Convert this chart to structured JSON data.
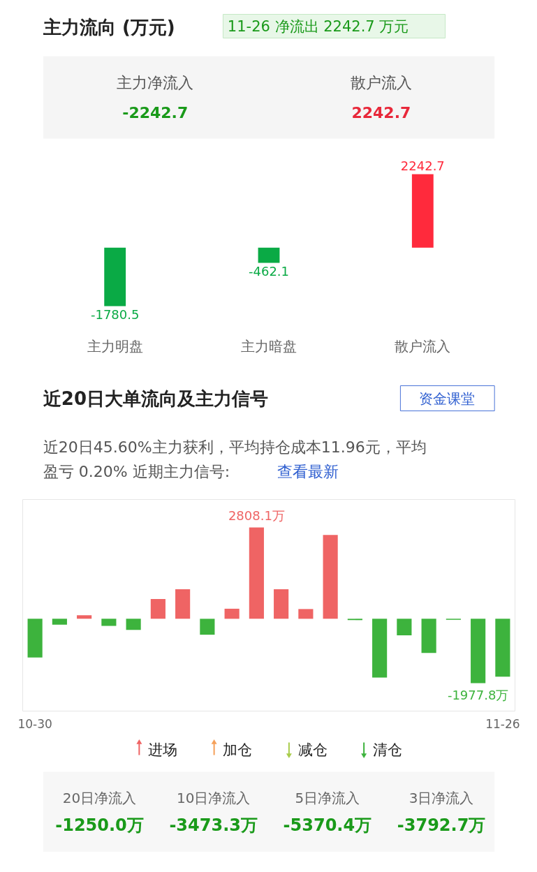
{
  "chart_data": [
    {
      "type": "other",
      "title": "主力流向 (万元)",
      "annotations": [
        "11-26 净流出 2242.7 万元",
        "主力净流入",
        "-2242.7",
        "散户流入",
        "2242.7"
      ]
    },
    {
      "type": "bar",
      "categories": [
        "主力明盘",
        "主力暗盘",
        "散户流入"
      ],
      "values": [
        -1780.5,
        -462.1,
        2242.7
      ],
      "colors": [
        "#0aaa45",
        "#0aaa45",
        "#ff2a3c"
      ],
      "data_labels": true,
      "tick_labels": "x"
    },
    {
      "type": "other",
      "title": "近20日大单流向及主力信号",
      "annotations": [
        "资金课堂",
        "近20日45.60%主力获利，平均持仓成本11.96元，平均",
        "盈亏 0.20% 近期主力信号:",
        "查看最新"
      ]
    },
    {
      "type": "bar",
      "categories": [
        "10-30",
        null,
        null,
        null,
        null,
        null,
        null,
        null,
        null,
        null,
        null,
        null,
        null,
        null,
        null,
        null,
        null,
        null,
        null,
        "11-26"
      ],
      "values": [
        -1190,
        -180,
        110,
        -220,
        -340,
        610,
        910,
        -490,
        310,
        2808.1,
        910,
        300,
        2580,
        -40,
        -1810,
        -510,
        -1050,
        -30,
        -1977.8,
        -1780
      ],
      "colors": [
        "#3db33d",
        "#3db33d",
        "#ef6464",
        "#3db33d",
        "#3db33d",
        "#ef6464",
        "#ef6464",
        "#3db33d",
        "#ef6464",
        "#ef6464",
        "#ef6464",
        "#ef6464",
        "#ef6464",
        "#3db33d",
        "#3db33d",
        "#3db33d",
        "#3db33d",
        "#3db33d",
        "#3db33d",
        "#3db33d"
      ],
      "value_labels": [
        null,
        null,
        null,
        null,
        null,
        null,
        null,
        null,
        null,
        "2808.1万",
        null,
        null,
        null,
        null,
        null,
        null,
        null,
        null,
        "-1977.8万",
        null
      ],
      "tick_labels": "x"
    },
    {
      "type": "other",
      "annotations": [
        "进场",
        "加仓",
        "减仓",
        "清仓",
        "20日净流入",
        "-1250.0万",
        "10日净流入",
        "-3473.3万",
        "5日净流入",
        "-5370.4万",
        "3日净流入",
        "-3792.7万"
      ]
    }
  ]
}
